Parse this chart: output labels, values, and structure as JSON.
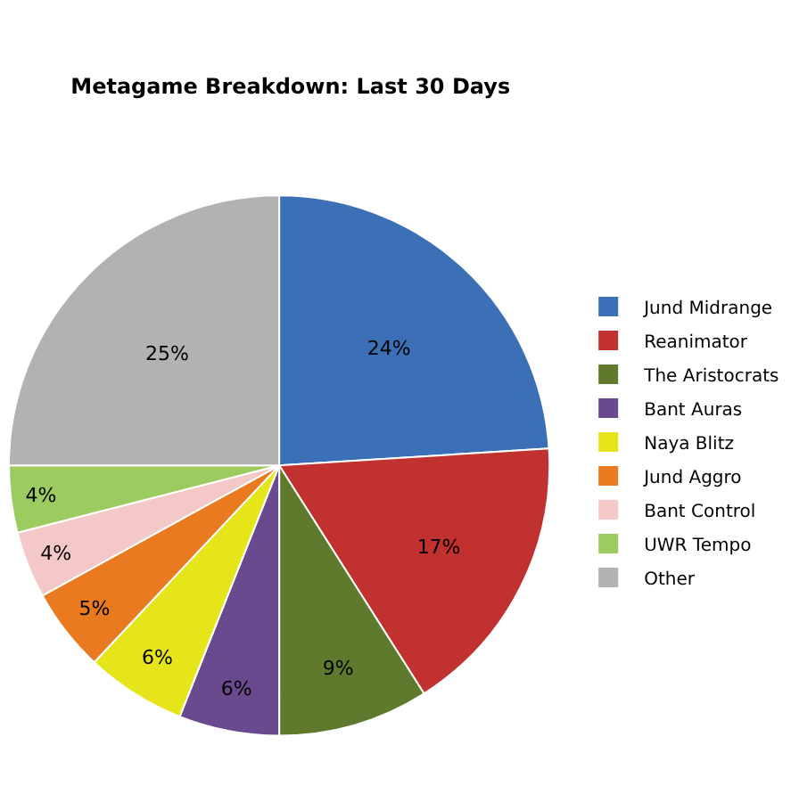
{
  "chart_data": {
    "type": "pie",
    "title": "Metagame Breakdown: Last 30 Days",
    "categories": [
      "Jund Midrange",
      "Reanimator",
      "The Aristocrats",
      "Bant Auras",
      "Naya Blitz",
      "Jund Aggro",
      "Bant Control",
      "UWR Tempo",
      "Other"
    ],
    "values": [
      24,
      17,
      9,
      6,
      6,
      5,
      4,
      4,
      25
    ],
    "value_labels": [
      "24%",
      "17%",
      "9%",
      "6%",
      "6%",
      "5%",
      "4%",
      "4%",
      "25%"
    ],
    "colors": [
      "#3b6fb6",
      "#c0312f",
      "#5f7a2c",
      "#6a4a8e",
      "#e5e51a",
      "#e97a1f",
      "#f5c8c8",
      "#9ccc5f",
      "#b2b2b2"
    ],
    "legend": "right"
  }
}
